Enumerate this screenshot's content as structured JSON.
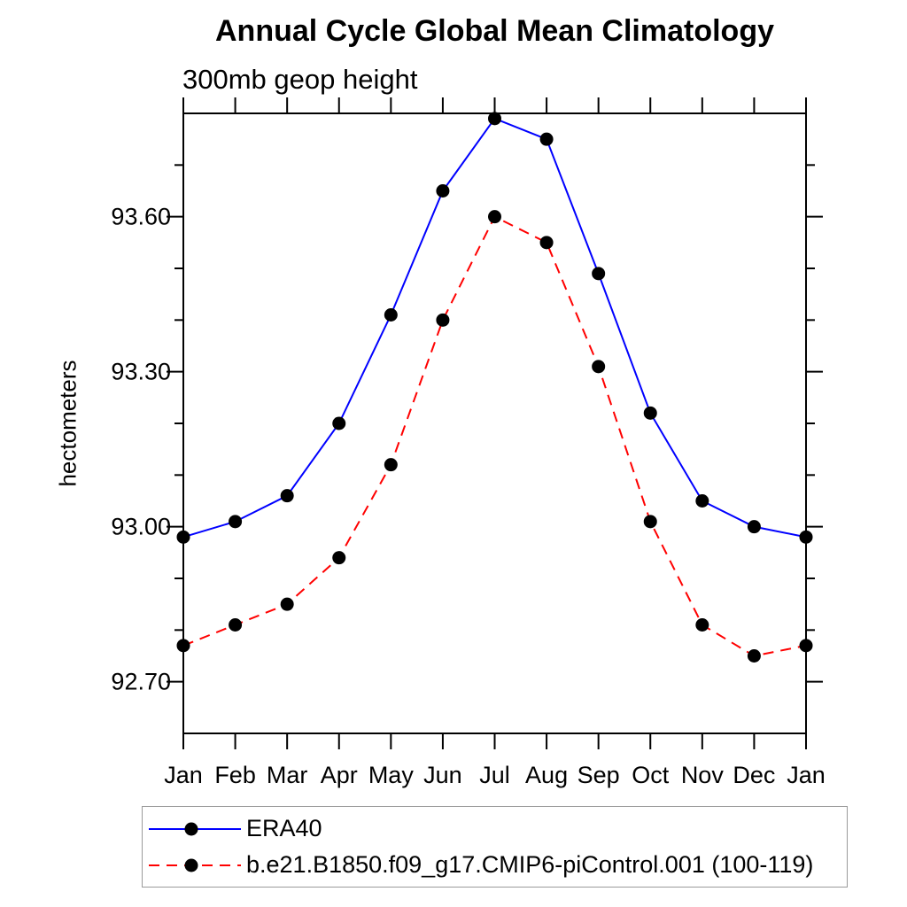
{
  "chart_data": {
    "type": "line",
    "title": "Annual Cycle Global Mean Climatology",
    "subtitle": "300mb geop height",
    "ylabel": "hectometers",
    "categories": [
      "Jan",
      "Feb",
      "Mar",
      "Apr",
      "May",
      "Jun",
      "Jul",
      "Aug",
      "Sep",
      "Oct",
      "Nov",
      "Dec",
      "Jan"
    ],
    "series": [
      {
        "name": "ERA40",
        "color": "#0000ff",
        "line_style": "solid",
        "marker": "filled-circle",
        "marker_color": "#000000",
        "values": [
          92.98,
          93.01,
          93.06,
          93.2,
          93.41,
          93.65,
          93.79,
          93.75,
          93.49,
          93.22,
          93.05,
          93.0,
          92.98
        ]
      },
      {
        "name": "b.e21.B1850.f09_g17.CMIP6-piControl.001 (100-119)",
        "color": "#ff0000",
        "line_style": "dashed",
        "marker": "filled-circle",
        "marker_color": "#000000",
        "values": [
          92.77,
          92.81,
          92.85,
          92.94,
          93.12,
          93.4,
          93.6,
          93.55,
          93.31,
          93.01,
          92.81,
          92.75,
          92.77
        ]
      }
    ],
    "ylim": [
      92.6,
      93.8
    ],
    "yticks_major": [
      92.7,
      93.0,
      93.3,
      93.6
    ],
    "ytick_labels": [
      "92.70",
      "93.00",
      "93.30",
      "93.60"
    ],
    "ytick_minor_step": 0.1,
    "axis_color": "#000000",
    "legend_position": "bottom",
    "grid": false
  }
}
